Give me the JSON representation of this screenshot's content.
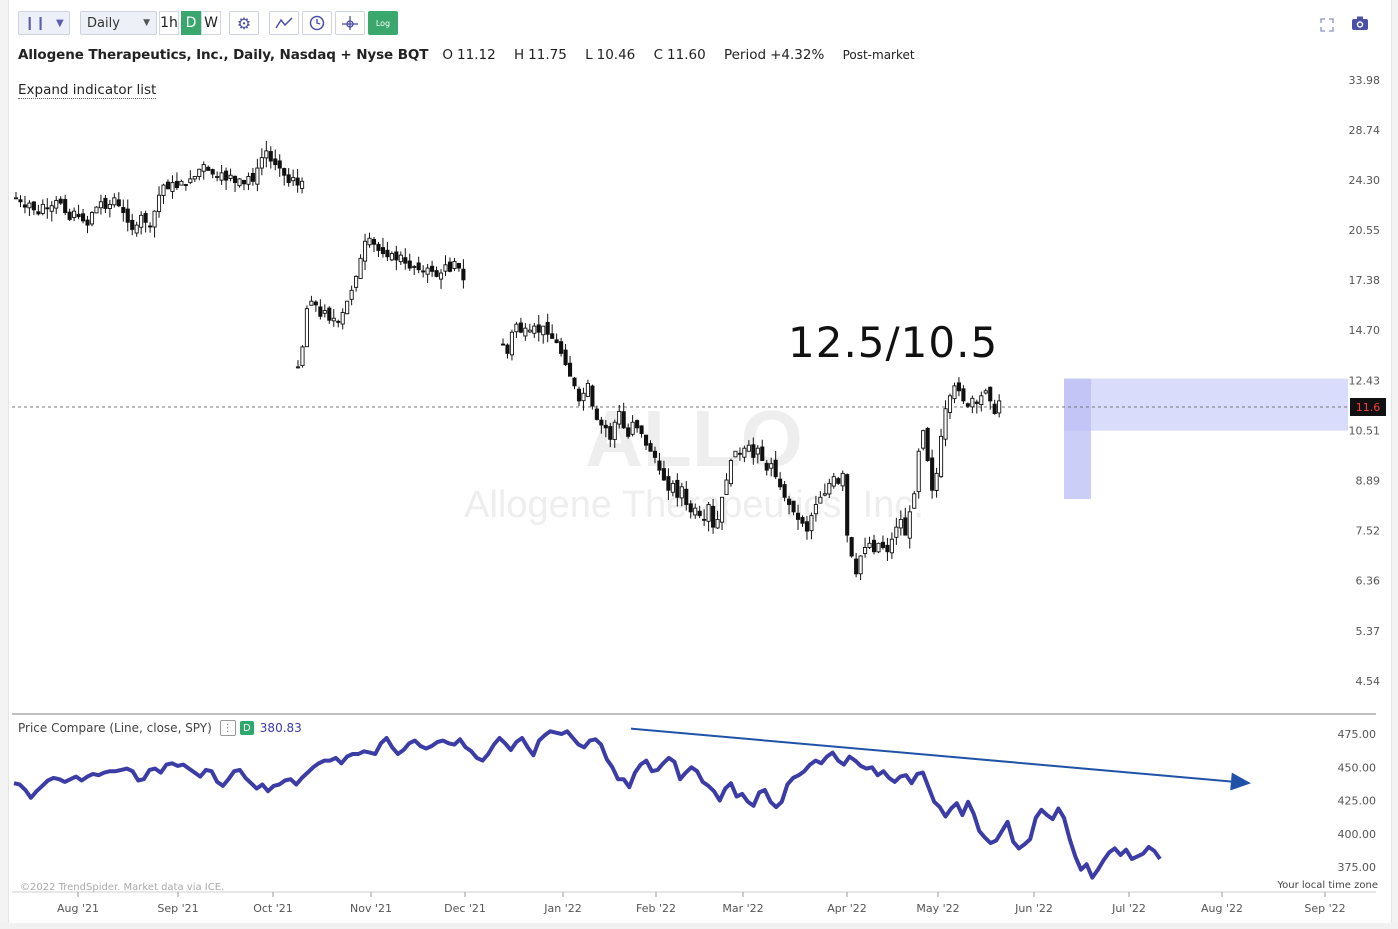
{
  "toolbar": {
    "interval": "Daily",
    "timeframes": [
      "1h",
      "D",
      "W"
    ],
    "active_timeframe": "D",
    "log_label": "Log"
  },
  "header": {
    "symbol_title": "Allogene Therapeutics, Inc., Daily, Nasdaq + Nyse BQT",
    "open_label": "O",
    "open": "11.12",
    "high_label": "H",
    "high": "11.75",
    "low_label": "L",
    "low": "10.46",
    "close_label": "C",
    "close": "11.60",
    "period_label": "Period",
    "period": "+4.32%",
    "session": "Post-market"
  },
  "expand_indicator_label": "Expand indicator list",
  "watermark": {
    "ticker": "ALLO",
    "company": "Allogene Therapeutics, Inc."
  },
  "annotation_text": "12.5/10.5",
  "last_price_tag": "11.6",
  "indicator": {
    "title": "Price Compare (Line, close, SPY)",
    "badge": "D",
    "value": "380.83"
  },
  "copyright": "©2022 TrendSpider. Market data via ICE.",
  "timezone_label": "Your local time zone",
  "colors": {
    "candle": "#111111",
    "spy_line": "#3c3ca6",
    "zone": "#d9dcfb",
    "zone_dark": "#b9bdf4",
    "arrow": "#1f52a8",
    "timeframe_active": "#3aa76d",
    "log_btn": "#3aa76d"
  },
  "chart_data": [
    {
      "type": "candlestick",
      "title": "Allogene Therapeutics, Inc., Daily, Nasdaq + Nyse BQT",
      "scale": "log",
      "y_ticks": [
        33.98,
        28.74,
        24.3,
        20.55,
        17.38,
        14.7,
        12.43,
        10.51,
        8.89,
        7.52,
        6.36,
        5.37,
        4.54
      ],
      "x_ticks": [
        "Aug '21",
        "Sep '21",
        "Oct '21",
        "Nov '21",
        "Dec '21",
        "Jan '22",
        "Feb '22",
        "Mar '22",
        "Apr '22",
        "May '22",
        "Jun '22",
        "Jul '22",
        "Aug '22",
        "Sep '22"
      ],
      "last_price": 11.6,
      "grid": false,
      "series": [
        {
          "period": "Jul '21 - Oct '21",
          "close": [
            22.9,
            22.6,
            22.2,
            22.5,
            22.0,
            21.7,
            22.4,
            22.1,
            22.3,
            22.7,
            22.5,
            21.8,
            21.3,
            21.9,
            21.5,
            21.2,
            20.9,
            21.8,
            22.2,
            22.6,
            22.1,
            22.4,
            22.9,
            22.3,
            21.8,
            21.1,
            20.6,
            20.9,
            21.6,
            21.1,
            20.8,
            21.9,
            23.1,
            23.9,
            23.6,
            24.1,
            23.7,
            24.2,
            23.9,
            24.4,
            24.6,
            25.2,
            25.6,
            25.1,
            24.8,
            24.6,
            24.9,
            24.3,
            24.7,
            24.1,
            24.4,
            24.0,
            24.6,
            24.2,
            25.3,
            26.2,
            26.8,
            25.9,
            25.6,
            25.3,
            24.7,
            24.1,
            24.5,
            23.9,
            24.2
          ]
        },
        {
          "period": "Oct '21 - Dec '21",
          "close": [
            13.0,
            13.9,
            15.8,
            16.2,
            16.0,
            15.4,
            15.7,
            15.2,
            15.3,
            15.1,
            15.6,
            16.2,
            16.8,
            17.6,
            18.7,
            19.8,
            20.0,
            19.6,
            19.2,
            19.0,
            18.8,
            19.0,
            18.6,
            18.9,
            18.4,
            18.1,
            18.2,
            18.0,
            17.9,
            18.1,
            17.9,
            17.6,
            17.8,
            18.3,
            17.9,
            18.5,
            18.1,
            17.4
          ]
        },
        {
          "period": "Dec '21 - Jul '22",
          "close": [
            14.0,
            13.6,
            14.6,
            15.0,
            14.6,
            14.8,
            14.7,
            14.9,
            14.6,
            14.9,
            14.5,
            14.3,
            14.1,
            13.6,
            13.1,
            12.6,
            12.2,
            11.6,
            11.9,
            12.3,
            11.4,
            10.9,
            10.7,
            10.6,
            10.2,
            10.8,
            11.2,
            10.6,
            10.3,
            10.8,
            10.6,
            10.4,
            10.0,
            9.8,
            9.6,
            9.2,
            8.9,
            8.6,
            8.8,
            8.4,
            8.7,
            8.2,
            8.0,
            8.1,
            7.9,
            7.8,
            8.2,
            7.6,
            7.8,
            8.4,
            8.9,
            9.5,
            9.8,
            9.7,
            9.9,
            10.0,
            9.6,
            9.9,
            9.5,
            9.2,
            9.4,
            9.0,
            8.7,
            8.4,
            8.2,
            8.0,
            7.8,
            7.7,
            7.5,
            7.9,
            8.2,
            8.4,
            8.5,
            8.8,
            9.0,
            8.8,
            9.1,
            7.4,
            6.9,
            6.5,
            6.9,
            7.1,
            7.2,
            7.0,
            7.2,
            7.1,
            7.0,
            7.3,
            7.6,
            7.8,
            7.4,
            8.0,
            8.5,
            9.8,
            10.5,
            9.5,
            8.6,
            9.1,
            10.3,
            11.3,
            11.8,
            12.2,
            12.0,
            11.6,
            11.4,
            11.7,
            11.5,
            11.8,
            12.0,
            11.6,
            11.12,
            11.6
          ]
        }
      ],
      "zone": {
        "low": 10.5,
        "high": 12.5,
        "start": "Jun '22",
        "label": "12.5/10.5"
      }
    },
    {
      "type": "line",
      "title": "Price Compare (Line, close, SPY)",
      "y_ticks": [
        475.0,
        450.0,
        425.0,
        400.0,
        375.0
      ],
      "series": [
        {
          "name": "SPY",
          "values": [
            438,
            437,
            433,
            427,
            432,
            436,
            440,
            442,
            441,
            439,
            441,
            443,
            440,
            443,
            445,
            444,
            446,
            447,
            447,
            448,
            449,
            447,
            440,
            441,
            448,
            449,
            446,
            452,
            453,
            451,
            452,
            449,
            446,
            443,
            448,
            447,
            439,
            436,
            441,
            447,
            448,
            442,
            438,
            434,
            437,
            432,
            436,
            437,
            440,
            441,
            437,
            442,
            446,
            450,
            453,
            455,
            455,
            457,
            453,
            458,
            460,
            460,
            462,
            461,
            460,
            468,
            472,
            465,
            460,
            463,
            468,
            470,
            466,
            464,
            466,
            469,
            470,
            468,
            467,
            471,
            465,
            462,
            457,
            455,
            460,
            467,
            472,
            468,
            463,
            469,
            472,
            465,
            459,
            470,
            474,
            477,
            476,
            475,
            477,
            472,
            467,
            465,
            470,
            471,
            467,
            456,
            450,
            441,
            441,
            435,
            446,
            452,
            455,
            447,
            448,
            453,
            457,
            454,
            441,
            446,
            450,
            447,
            439,
            436,
            432,
            425,
            434,
            438,
            428,
            430,
            424,
            421,
            431,
            433,
            424,
            420,
            424,
            437,
            442,
            444,
            447,
            452,
            455,
            453,
            458,
            461,
            455,
            452,
            458,
            455,
            451,
            449,
            450,
            444,
            447,
            442,
            439,
            443,
            444,
            438,
            445,
            446,
            435,
            424,
            420,
            413,
            419,
            423,
            414,
            424,
            415,
            402,
            397,
            393,
            395,
            402,
            409,
            394,
            389,
            392,
            396,
            412,
            418,
            414,
            411,
            419,
            412,
            396,
            383,
            373,
            377,
            367,
            373,
            380,
            386,
            389,
            384,
            388,
            381,
            383,
            385,
            390,
            387,
            381
          ]
        }
      ],
      "trend_arrow": {
        "from_value": 479,
        "to_value": 439,
        "from": "Jan '22",
        "to": "Jul '22"
      }
    }
  ]
}
